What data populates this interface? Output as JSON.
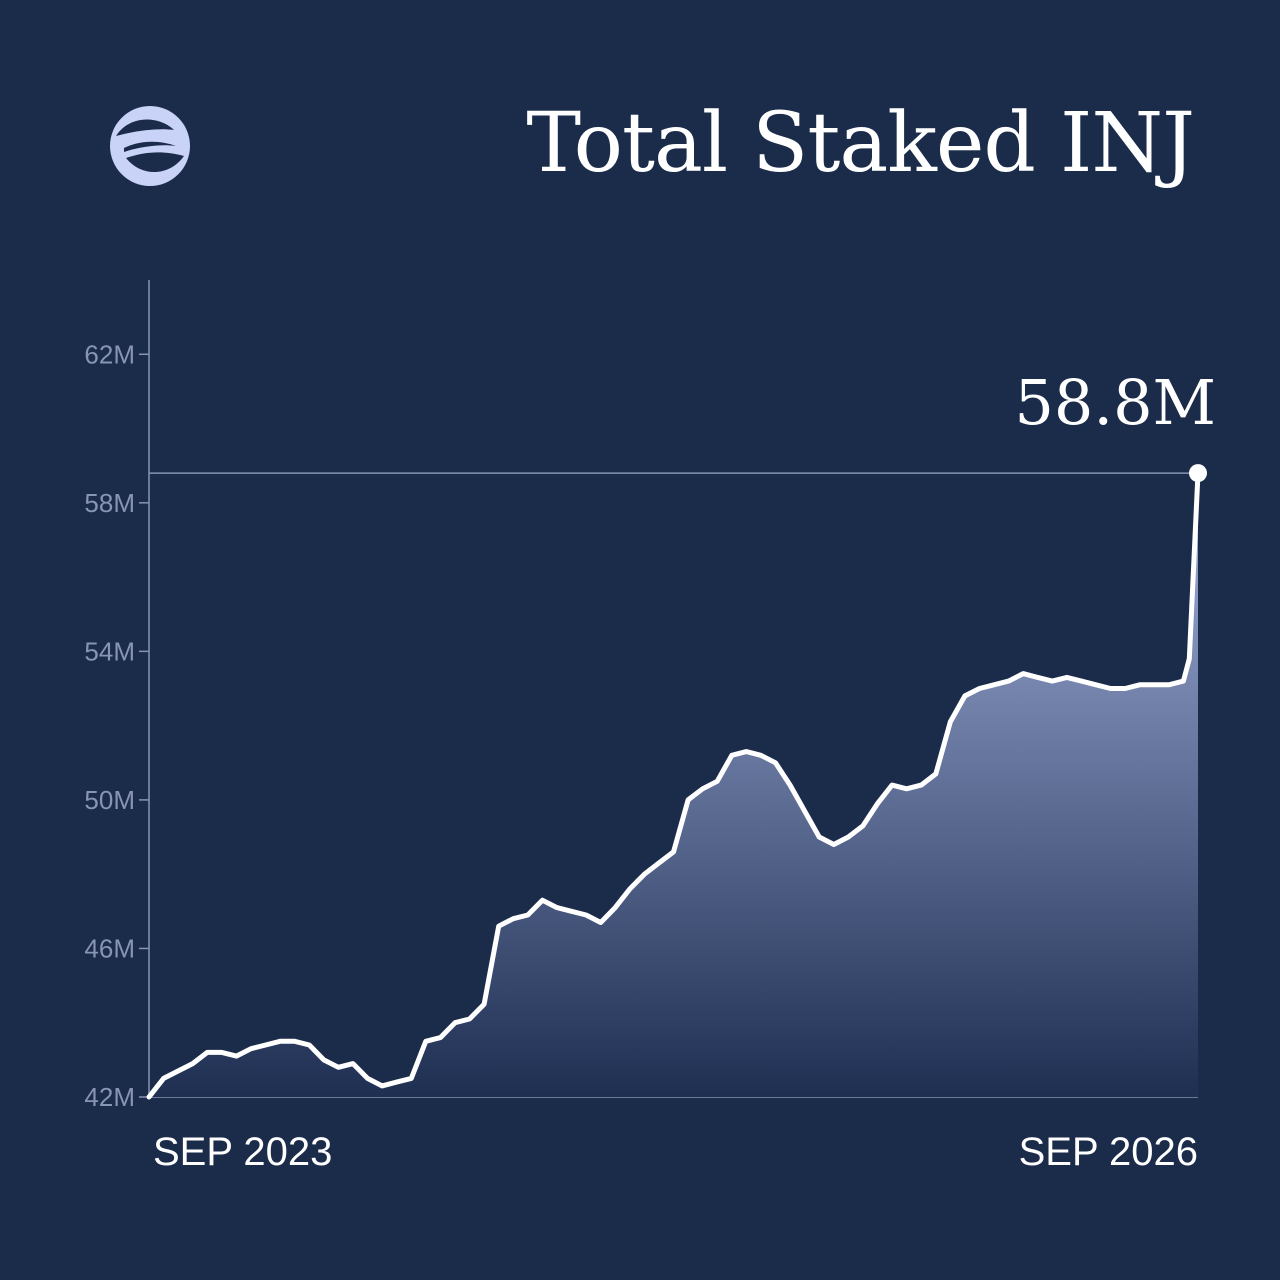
{
  "header": {
    "logo_icon": "injective-logo-icon",
    "title": "Total Staked INJ"
  },
  "colors": {
    "background": "#1b2b4a",
    "line": "#ffffff",
    "area_top": "#a3b1dd",
    "area_bottom": "#1e2f52",
    "axis": "#8794b2",
    "logo": "#c9d2f7"
  },
  "chart_data": {
    "type": "area",
    "title": "Total Staked INJ",
    "xlabel": "",
    "ylabel": "",
    "ylim": [
      42,
      64
    ],
    "yticks": [
      42,
      46,
      50,
      54,
      58,
      62
    ],
    "ytick_labels": [
      "42M",
      "46M",
      "50M",
      "54M",
      "58M",
      "62M"
    ],
    "x_tick_labels": [
      "SEP 2023",
      "SEP 2026"
    ],
    "grid": false,
    "legend": "none",
    "highlight": {
      "value": 58.8,
      "label": "58.8M"
    },
    "series": [
      {
        "x": [
          0,
          0.5,
          1,
          1.5,
          2,
          2.5,
          3,
          3.5,
          4,
          4.5,
          5,
          5.5,
          6,
          6.5,
          7,
          7.5,
          8,
          8.5,
          9,
          9.5,
          10,
          10.5,
          11,
          11.5,
          12,
          12.5,
          13,
          13.5,
          14,
          14.5,
          15,
          15.5,
          16,
          16.5,
          17,
          17.5,
          18,
          18.5,
          19,
          19.5,
          20,
          20.5,
          21,
          21.5,
          22,
          22.5,
          23,
          23.5,
          24,
          24.5,
          25,
          25.5,
          26,
          26.5,
          27,
          27.5,
          28,
          28.5,
          29,
          29.5,
          30,
          30.5,
          31,
          31.5,
          32,
          32.5,
          33,
          33.5,
          34,
          34.5,
          35,
          35.5,
          35.7,
          36
        ],
        "values": [
          42.0,
          42.5,
          42.7,
          42.9,
          43.2,
          43.2,
          43.1,
          43.3,
          43.4,
          43.5,
          43.5,
          43.4,
          43.0,
          42.8,
          42.9,
          42.5,
          42.3,
          42.4,
          42.5,
          43.5,
          43.6,
          44.0,
          44.1,
          44.5,
          46.6,
          46.8,
          46.9,
          47.3,
          47.1,
          47.0,
          46.9,
          46.7,
          47.1,
          47.6,
          48.0,
          48.3,
          48.6,
          50.0,
          50.3,
          50.5,
          51.2,
          51.3,
          51.2,
          51.0,
          50.4,
          49.7,
          49.0,
          48.8,
          49.0,
          49.3,
          49.9,
          50.4,
          50.3,
          50.4,
          50.7,
          52.1,
          52.8,
          53.0,
          53.1,
          53.2,
          53.4,
          53.3,
          53.2,
          53.3,
          53.2,
          53.1,
          53.0,
          53.0,
          53.1,
          53.1,
          53.1,
          53.2,
          53.8,
          58.8
        ]
      }
    ]
  }
}
